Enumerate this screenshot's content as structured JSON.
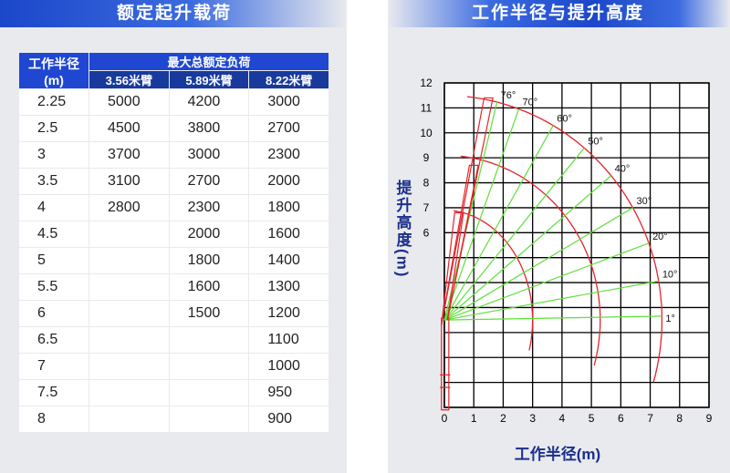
{
  "load_table": {
    "title": "额定起升载荷",
    "radius_header": "工作半径(m)",
    "load_header": "最大总额定负荷",
    "booms": [
      "3.56米臂",
      "5.89米臂",
      "8.22米臂"
    ],
    "rows": [
      [
        2.25,
        5000,
        4200,
        3000
      ],
      [
        2.5,
        4500,
        3800,
        2700
      ],
      [
        3,
        3700,
        3000,
        2300
      ],
      [
        3.5,
        3100,
        2700,
        2000
      ],
      [
        4,
        2800,
        2300,
        1800
      ],
      [
        4.5,
        null,
        2000,
        1600
      ],
      [
        5,
        null,
        1800,
        1400
      ],
      [
        5.5,
        null,
        1600,
        1300
      ],
      [
        6,
        null,
        1500,
        1200
      ],
      [
        6.5,
        null,
        null,
        1100
      ],
      [
        7,
        null,
        null,
        1000
      ],
      [
        7.5,
        null,
        null,
        950
      ],
      [
        8,
        null,
        null,
        900
      ]
    ]
  },
  "range_diagram": {
    "title": "工作半径与提升高度",
    "xlabel": "工作半径(m)",
    "ylabel": "提升高度(m)",
    "xlim": [
      0,
      9
    ],
    "ylim": [
      -1,
      12
    ],
    "xticks": [
      0,
      1,
      2,
      3,
      4,
      5,
      6,
      7,
      8,
      9
    ],
    "yticks": [
      6,
      7,
      8,
      9,
      10,
      11,
      12
    ],
    "angles": [
      {
        "value": 76,
        "label": "76°"
      },
      {
        "value": 70,
        "label": "70°"
      },
      {
        "value": 60,
        "label": "60°"
      },
      {
        "value": 50,
        "label": "50°"
      },
      {
        "value": 40,
        "label": "40°"
      },
      {
        "value": 30,
        "label": "30°"
      },
      {
        "value": 20,
        "label": "20°"
      },
      {
        "value": 10,
        "label": "10°"
      },
      {
        "value": 1,
        "label": "1°"
      }
    ]
  }
}
